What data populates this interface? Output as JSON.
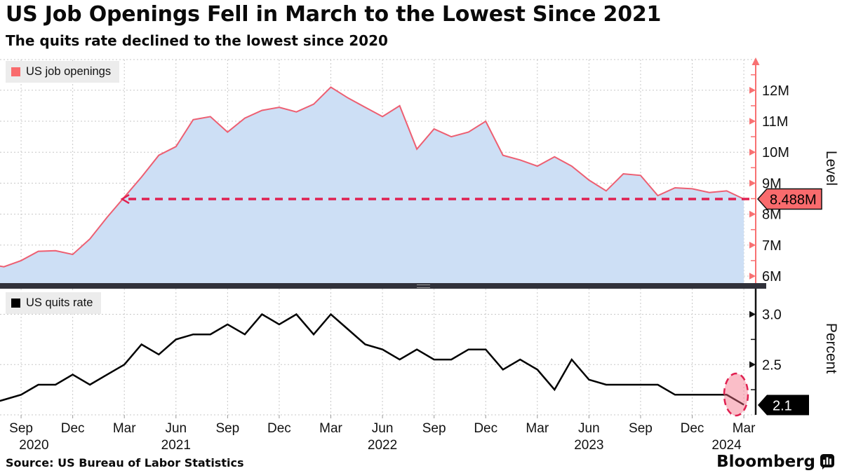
{
  "title": "US Job Openings Fell in March to the Lowest Since 2021",
  "subtitle": "The quits rate declined to the lowest since 2020",
  "source": "Source: US Bureau of Labor Statistics",
  "brand": {
    "name": "Bloomberg"
  },
  "colors": {
    "accent_red": "#f96b6d",
    "line_red": "#ed5f72",
    "area_fill": "#cddff5",
    "annotation_red": "#e02050",
    "axis_red": "#f87172",
    "series_black": "#111111",
    "legend_bg": "#ececec",
    "divider": "#30313a",
    "gridline": "#c7c7c7",
    "highlight_fill": "rgba(243,111,134,0.45)"
  },
  "x_axis": {
    "frequency": "monthly",
    "start": "Jul 2020",
    "end": "Mar 2024",
    "month_ticks": [
      "Sep",
      "Dec",
      "Mar",
      "Jun",
      "Sep",
      "Dec",
      "Mar",
      "Jun",
      "Sep",
      "Dec",
      "Mar",
      "Jun",
      "Sep",
      "Dec",
      "Mar"
    ],
    "year_labels": [
      "2020",
      "2021",
      "2022",
      "2023",
      "2024"
    ]
  },
  "chart_data": [
    {
      "type": "area",
      "series_name": "US job openings",
      "unit": "millions",
      "x_start": "Jul 2020",
      "x_end": "Mar 2024",
      "values": [
        6.4,
        6.3,
        6.5,
        6.8,
        6.82,
        6.7,
        7.2,
        7.9,
        8.55,
        9.2,
        9.9,
        10.18,
        11.05,
        11.15,
        10.65,
        11.1,
        11.35,
        11.45,
        11.3,
        11.55,
        12.1,
        11.75,
        11.45,
        11.15,
        11.5,
        10.1,
        10.75,
        10.5,
        10.65,
        11.0,
        9.9,
        9.75,
        9.55,
        9.85,
        9.55,
        9.1,
        8.75,
        9.3,
        9.25,
        8.6,
        8.85,
        8.82,
        8.7,
        8.75,
        8.488
      ],
      "latest_value": 8.488,
      "latest_label": "8.488M",
      "ylabel": "Level",
      "ylim": [
        5.77,
        12.99
      ],
      "ytick_labels": [
        "6M",
        "7M",
        "8M",
        "9M",
        "10M",
        "11M",
        "12M"
      ],
      "ytick_values": [
        6,
        7,
        8,
        9,
        10,
        11,
        12
      ],
      "ytick_minor_values": [
        6.5,
        7.5,
        8.5,
        9.5,
        10.5,
        11.5,
        12.5
      ],
      "annotations": [
        "dashed horizontal line at latest value 8.488M with left arrowhead where it meets the curve"
      ],
      "legend_position": "top-left",
      "grid": true
    },
    {
      "type": "line",
      "series_name": "US quits rate",
      "unit": "percent",
      "x_start": "Jul 2020",
      "x_end": "Mar 2024",
      "values": [
        2.1,
        2.15,
        2.2,
        2.3,
        2.3,
        2.4,
        2.3,
        2.4,
        2.5,
        2.7,
        2.6,
        2.75,
        2.8,
        2.8,
        2.9,
        2.8,
        3.0,
        2.9,
        3.0,
        2.8,
        3.0,
        2.85,
        2.7,
        2.65,
        2.55,
        2.65,
        2.55,
        2.55,
        2.65,
        2.65,
        2.45,
        2.55,
        2.45,
        2.25,
        2.55,
        2.35,
        2.3,
        2.3,
        2.3,
        2.3,
        2.2,
        2.2,
        2.2,
        2.2,
        2.1
      ],
      "latest_value": 2.1,
      "latest_label": "2.1",
      "ylabel": "Percent",
      "ylim": [
        2.0,
        3.25
      ],
      "ytick_labels": [
        "2.5",
        "3.0"
      ],
      "ytick_values": [
        2.5,
        3.0
      ],
      "ytick_minor_values": [
        2.25,
        2.75
      ],
      "gridline_values": [
        2.0,
        2.5,
        3.0
      ],
      "annotations": [
        "dashed pink ellipse highlighting the final data point (Mar 2024)"
      ],
      "legend_position": "top-left",
      "grid": true
    }
  ]
}
